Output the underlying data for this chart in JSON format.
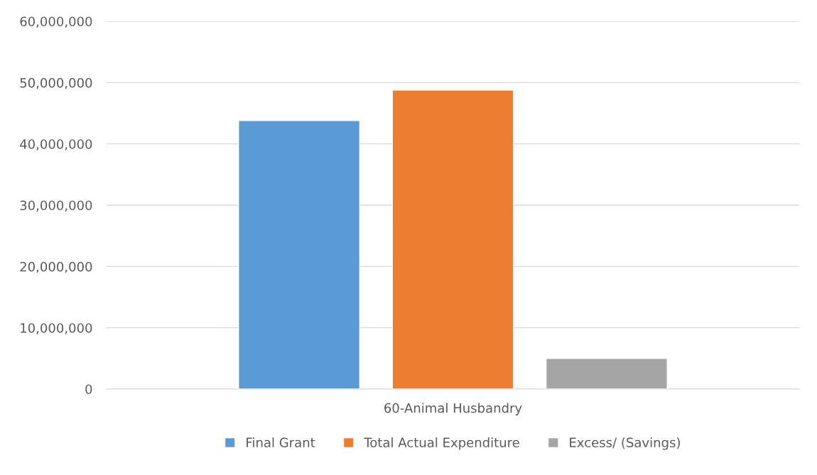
{
  "chart_data": {
    "type": "bar",
    "categories": [
      "60-Animal Husbandry"
    ],
    "series": [
      {
        "name": "Final Grant",
        "color": "#5b9bd5",
        "values": [
          43800000
        ]
      },
      {
        "name": "Total Actual Expenditure",
        "color": "#ed7d31",
        "values": [
          48800000
        ]
      },
      {
        "name": "Excess/ (Savings)",
        "color": "#a5a5a5",
        "values": [
          5000000
        ]
      }
    ],
    "ylim": [
      0,
      60000000
    ],
    "yticks": [
      {
        "value": 0,
        "label": "0"
      },
      {
        "value": 10000000,
        "label": "10,000,000"
      },
      {
        "value": 20000000,
        "label": "20,000,000"
      },
      {
        "value": 30000000,
        "label": "30,000,000"
      },
      {
        "value": 40000000,
        "label": "40,000,000"
      },
      {
        "value": 50000000,
        "label": "50,000,000"
      },
      {
        "value": 60000000,
        "label": "60,000,000"
      }
    ],
    "grid": "y",
    "legend": "bottom"
  }
}
